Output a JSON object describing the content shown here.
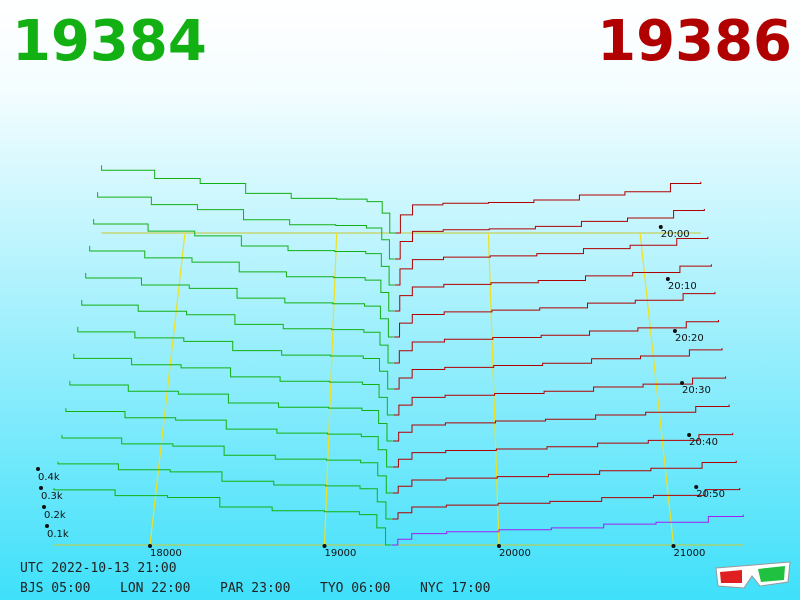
{
  "bid_price": "19384",
  "ask_price": "19386",
  "bid_color": "#13b013",
  "ask_color": "#b00000",
  "front_ask_color": "#a020f0",
  "price_ticks": [
    18000,
    19000,
    20000,
    21000
  ],
  "depth_ticks": [
    {
      "value": 100,
      "label": "0.1k"
    },
    {
      "value": 200,
      "label": "0.2k"
    },
    {
      "value": 300,
      "label": "0.3k"
    },
    {
      "value": 400,
      "label": "0.4k"
    }
  ],
  "time_ticks": [
    "20:00",
    "20:10",
    "20:20",
    "20:30",
    "20:40",
    "20:50"
  ],
  "footer": {
    "utc": "UTC 2022-10-13 21:00",
    "zones": [
      "BJS 05:00",
      "LON 22:00",
      "PAR 23:00",
      "TYO 06:00",
      "NYC 17:00"
    ]
  },
  "bid_prices": [
    19384,
    19350,
    19300,
    19200,
    19000,
    18700,
    18400,
    18100,
    17800,
    17450
  ],
  "ask_prices": [
    19386,
    19420,
    19500,
    19700,
    20000,
    20300,
    20600,
    20900,
    21200,
    21400
  ],
  "snapshots": [
    {
      "bids": [
        0,
        120,
        190,
        205,
        210,
        240,
        300,
        330,
        380,
        410
      ],
      "asks": [
        0,
        110,
        170,
        180,
        185,
        200,
        230,
        250,
        300,
        310
      ]
    },
    {
      "bids": [
        0,
        115,
        185,
        200,
        205,
        235,
        295,
        325,
        370,
        400
      ],
      "asks": [
        0,
        105,
        165,
        175,
        180,
        195,
        225,
        245,
        290,
        300
      ]
    },
    {
      "bids": [
        0,
        110,
        185,
        198,
        203,
        230,
        290,
        318,
        360,
        390
      ],
      "asks": [
        0,
        95,
        150,
        165,
        172,
        185,
        215,
        235,
        275,
        285
      ]
    },
    {
      "bids": [
        0,
        108,
        180,
        195,
        200,
        228,
        285,
        310,
        350,
        380
      ],
      "asks": [
        0,
        90,
        140,
        155,
        165,
        178,
        205,
        225,
        262,
        272
      ]
    },
    {
      "bids": [
        0,
        105,
        178,
        192,
        197,
        224,
        280,
        300,
        340,
        370
      ],
      "asks": [
        0,
        80,
        130,
        145,
        155,
        168,
        195,
        212,
        250,
        260
      ]
    },
    {
      "bids": [
        0,
        102,
        175,
        190,
        195,
        220,
        275,
        295,
        330,
        360
      ],
      "asks": [
        0,
        70,
        120,
        135,
        145,
        158,
        182,
        200,
        235,
        245
      ]
    },
    {
      "bids": [
        0,
        100,
        172,
        186,
        191,
        216,
        268,
        288,
        322,
        350
      ],
      "asks": [
        0,
        62,
        110,
        122,
        132,
        145,
        170,
        186,
        220,
        230
      ]
    },
    {
      "bids": [
        0,
        98,
        170,
        183,
        188,
        212,
        262,
        280,
        315,
        340
      ],
      "asks": [
        0,
        55,
        98,
        110,
        120,
        132,
        156,
        172,
        205,
        215
      ]
    },
    {
      "bids": [
        0,
        96,
        168,
        181,
        186,
        209,
        258,
        274,
        308,
        330
      ],
      "asks": [
        0,
        48,
        88,
        100,
        110,
        120,
        143,
        158,
        190,
        200
      ]
    },
    {
      "bids": [
        0,
        94,
        165,
        179,
        184,
        206,
        255,
        268,
        302,
        320
      ],
      "asks": [
        0,
        42,
        78,
        90,
        98,
        110,
        130,
        145,
        176,
        186
      ]
    },
    {
      "bids": [
        0,
        92,
        163,
        177,
        182,
        203,
        252,
        264,
        296,
        312
      ],
      "asks": [
        0,
        36,
        70,
        80,
        88,
        100,
        120,
        133,
        164,
        174
      ]
    },
    {
      "bids": [
        0,
        91,
        161,
        176,
        181,
        201,
        251,
        262,
        293,
        305
      ],
      "asks": [
        0,
        33,
        64,
        74,
        84,
        94,
        114,
        126,
        156,
        165
      ]
    },
    {
      "bids": [
        0,
        90,
        160,
        175,
        180,
        200,
        250,
        260,
        290,
        300
      ],
      "asks": [
        0,
        30,
        60,
        70,
        80,
        90,
        110,
        120,
        150,
        160
      ]
    }
  ]
}
